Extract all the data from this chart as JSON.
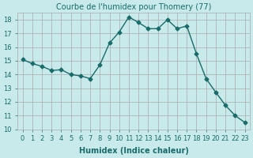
{
  "x": [
    0,
    1,
    2,
    3,
    4,
    5,
    6,
    7,
    8,
    9,
    10,
    11,
    12,
    13,
    14,
    15,
    16,
    17,
    18,
    19,
    20,
    21,
    22,
    23
  ],
  "y": [
    15.1,
    14.8,
    14.6,
    14.3,
    14.35,
    14.0,
    13.9,
    13.7,
    14.7,
    16.3,
    17.1,
    18.2,
    17.8,
    17.35,
    17.35,
    18.0,
    17.35,
    17.55,
    15.5,
    13.7,
    12.7,
    11.75,
    11.0,
    10.5
  ],
  "title": "Courbe de l'humidex pour Thomery (77)",
  "xlabel": "Humidex (Indice chaleur)",
  "ylabel": "",
  "xlim": [
    -0.5,
    23.5
  ],
  "ylim": [
    10,
    18.5
  ],
  "yticks": [
    10,
    11,
    12,
    13,
    14,
    15,
    16,
    17,
    18
  ],
  "xticks": [
    0,
    1,
    2,
    3,
    4,
    5,
    6,
    7,
    8,
    9,
    10,
    11,
    12,
    13,
    14,
    15,
    16,
    17,
    18,
    19,
    20,
    21,
    22,
    23
  ],
  "bg_color": "#c8eaea",
  "line_color": "#1a6b6b",
  "grid_color": "#aaaaaa",
  "title_fontsize": 7,
  "label_fontsize": 7,
  "tick_fontsize": 6
}
